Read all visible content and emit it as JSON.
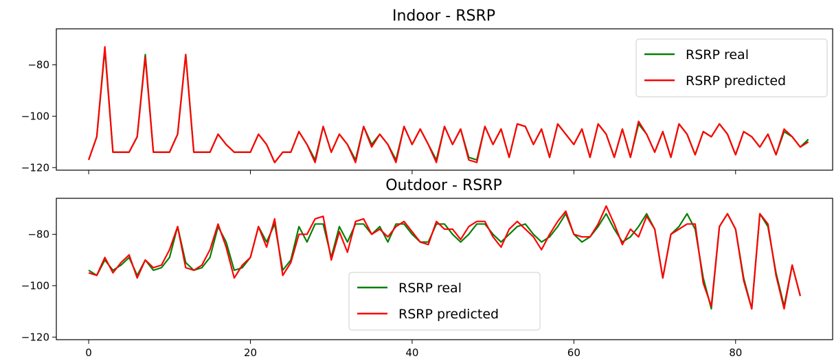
{
  "chart_data": [
    {
      "type": "line",
      "title": "Indoor - RSRP",
      "xlabel": "",
      "ylabel": "",
      "xlim": [
        -4,
        92
      ],
      "ylim": [
        -121,
        -66
      ],
      "xticks": [
        0,
        20,
        40,
        60,
        80
      ],
      "xtick_labels_visible": false,
      "yticks": [
        -120,
        -100,
        -80
      ],
      "ytick_labels": [
        "−120",
        "−100",
        "−80"
      ],
      "legend": "top-right",
      "grid": false,
      "series": [
        {
          "name": "RSRP real",
          "color": "#008000",
          "values": [
            -117,
            -108,
            -74,
            -114,
            -114,
            -114,
            -108,
            -76,
            -114,
            -114,
            -114,
            -107,
            -76,
            -114,
            -114,
            -114,
            -107,
            -111,
            -114,
            -114,
            -114,
            -107,
            -111,
            -118,
            -114,
            -114,
            -106,
            -111,
            -117,
            -104,
            -114,
            -107,
            -111,
            -117,
            -104,
            -111,
            -107,
            -111,
            -117,
            -104,
            -111,
            -105,
            -111,
            -117,
            -104,
            -111,
            -105,
            -116,
            -117,
            -104,
            -111,
            -105,
            -116,
            -103,
            -104,
            -111,
            -105,
            -116,
            -103,
            -107,
            -111,
            -105,
            -116,
            -103,
            -107,
            -116,
            -105,
            -116,
            -103,
            -107,
            -114,
            -106,
            -116,
            -103,
            -107,
            -115,
            -106,
            -108,
            -103,
            -107,
            -115,
            -106,
            -108,
            -112,
            -107,
            -115,
            -106,
            -108,
            -112,
            -109
          ]
        },
        {
          "name": "RSRP predicted",
          "color": "#ff0000",
          "values": [
            -117,
            -108,
            -73,
            -114,
            -114,
            -114,
            -108,
            -77,
            -114,
            -114,
            -114,
            -107,
            -76,
            -114,
            -114,
            -114,
            -107,
            -111,
            -114,
            -114,
            -114,
            -107,
            -111,
            -118,
            -114,
            -114,
            -106,
            -111,
            -118,
            -104,
            -114,
            -107,
            -111,
            -118,
            -104,
            -112,
            -107,
            -111,
            -118,
            -104,
            -111,
            -105,
            -111,
            -118,
            -104,
            -111,
            -105,
            -117,
            -118,
            -104,
            -111,
            -105,
            -116,
            -103,
            -104,
            -111,
            -105,
            -116,
            -103,
            -107,
            -111,
            -105,
            -116,
            -103,
            -107,
            -116,
            -105,
            -116,
            -102,
            -107,
            -114,
            -106,
            -116,
            -103,
            -107,
            -115,
            -106,
            -108,
            -103,
            -107,
            -115,
            -106,
            -108,
            -112,
            -107,
            -115,
            -105,
            -108,
            -112,
            -110
          ]
        }
      ]
    },
    {
      "type": "line",
      "title": "Outdoor - RSRP",
      "xlabel": "",
      "ylabel": "",
      "xlim": [
        -4,
        92
      ],
      "ylim": [
        -121,
        -66
      ],
      "xticks": [
        0,
        20,
        40,
        60,
        80
      ],
      "xtick_labels": [
        "0",
        "20",
        "40",
        "60",
        "80"
      ],
      "yticks": [
        -120,
        -100,
        -80
      ],
      "ytick_labels": [
        "−120",
        "−100",
        "−80"
      ],
      "legend": "lower-center",
      "grid": false,
      "series": [
        {
          "name": "RSRP real",
          "color": "#008000",
          "values": [
            -94,
            -96,
            -90,
            -94,
            -92,
            -89,
            -96,
            -90,
            -94,
            -93,
            -89,
            -77,
            -91,
            -94,
            -93,
            -89,
            -77,
            -83,
            -94,
            -93,
            -89,
            -77,
            -83,
            -76,
            -94,
            -90,
            -77,
            -83,
            -76,
            -76,
            -89,
            -77,
            -83,
            -76,
            -76,
            -80,
            -77,
            -83,
            -76,
            -76,
            -80,
            -83,
            -83,
            -76,
            -76,
            -80,
            -83,
            -80,
            -76,
            -76,
            -80,
            -83,
            -80,
            -77,
            -76,
            -80,
            -83,
            -81,
            -77,
            -72,
            -80,
            -83,
            -81,
            -77,
            -72,
            -78,
            -83,
            -81,
            -77,
            -72,
            -78,
            -97,
            -80,
            -77,
            -72,
            -78,
            -97,
            -109,
            -77,
            -72,
            -78,
            -97,
            -109,
            -72,
            -77,
            -95,
            -108,
            -92,
            -104
          ]
        },
        {
          "name": "RSRP predicted",
          "color": "#ff0000",
          "values": [
            -95,
            -96,
            -89,
            -95,
            -91,
            -88,
            -97,
            -90,
            -93,
            -92,
            -86,
            -77,
            -93,
            -94,
            -92,
            -86,
            -76,
            -85,
            -97,
            -92,
            -89,
            -77,
            -85,
            -74,
            -96,
            -91,
            -80,
            -80,
            -74,
            -73,
            -90,
            -79,
            -87,
            -75,
            -74,
            -80,
            -78,
            -81,
            -77,
            -75,
            -79,
            -83,
            -84,
            -75,
            -78,
            -78,
            -82,
            -77,
            -75,
            -75,
            -81,
            -85,
            -78,
            -75,
            -78,
            -81,
            -86,
            -80,
            -75,
            -71,
            -80,
            -81,
            -81,
            -76,
            -69,
            -76,
            -84,
            -78,
            -81,
            -73,
            -78,
            -97,
            -80,
            -78,
            -76,
            -76,
            -99,
            -108,
            -77,
            -72,
            -78,
            -98,
            -109,
            -72,
            -76,
            -96,
            -109,
            -92,
            -104
          ]
        }
      ]
    }
  ]
}
